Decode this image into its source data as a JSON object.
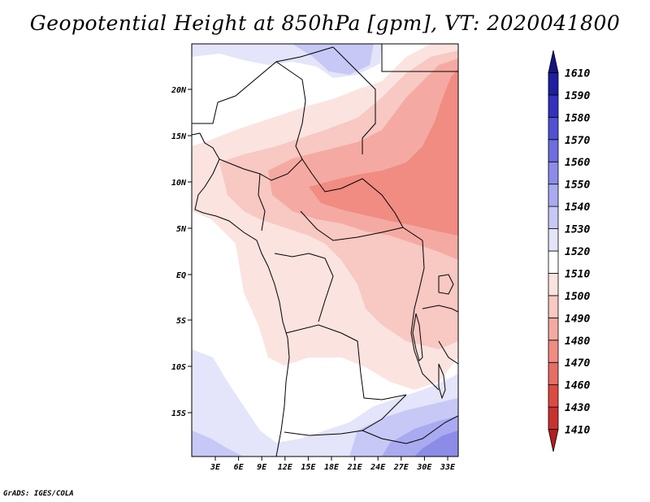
{
  "title": "Geopotential Height at 850hPa [gpm], VT: 2020041800",
  "credit": "GrADS: IGES/COLA",
  "map": {
    "lon_ticks": [
      "3E",
      "6E",
      "9E",
      "12E",
      "15E",
      "18E",
      "21E",
      "24E",
      "27E",
      "30E",
      "33E"
    ],
    "lat_ticks": [
      "20N",
      "15N",
      "10N",
      "5N",
      "EQ",
      "5S",
      "10S",
      "15S"
    ]
  },
  "colorbar": {
    "levels": [
      "1410",
      "1430",
      "1460",
      "1470",
      "1480",
      "1490",
      "1500",
      "1510",
      "1520",
      "1530",
      "1540",
      "1550",
      "1560",
      "1570",
      "1580",
      "1590",
      "1610"
    ],
    "colors": [
      "#b41e1e",
      "#c8322d",
      "#dc4b41",
      "#e66e64",
      "#f08c82",
      "#f4aaa2",
      "#f8c8c2",
      "#fbe3e0",
      "#ffffff",
      "#e4e4fa",
      "#c8c8f6",
      "#aaaaf0",
      "#8c8ce8",
      "#6e6ee0",
      "#5050d2",
      "#3232be",
      "#1e1ea0",
      "#141482"
    ]
  }
}
